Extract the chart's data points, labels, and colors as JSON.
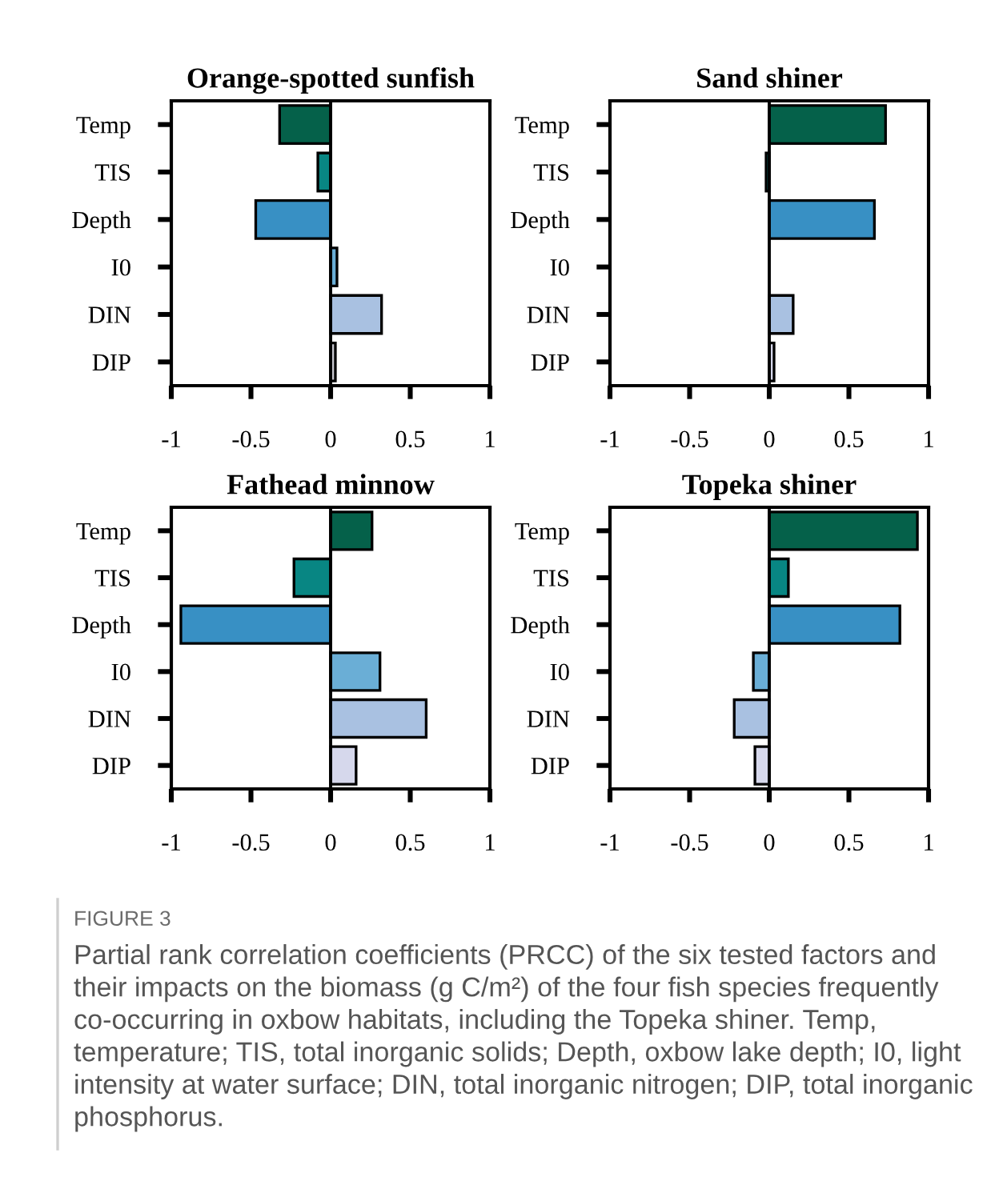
{
  "chart_data": [
    {
      "type": "bar",
      "orientation": "horizontal",
      "title": "Orange-spotted sunfish",
      "categories": [
        "Temp",
        "TIS",
        "Depth",
        "I0",
        "DIN",
        "DIP"
      ],
      "values": [
        -0.32,
        -0.08,
        -0.47,
        0.04,
        0.32,
        0.03
      ],
      "colors": [
        "#05614a",
        "#088683",
        "#3890c4",
        "#6aaed6",
        "#a9c1e1",
        "#c8c8d0"
      ],
      "xlim": [
        -1,
        1
      ],
      "xticks": [
        -1,
        -0.5,
        0,
        0.5,
        1
      ],
      "ref_lines": [
        {
          "axis": "x",
          "value": 0,
          "color": "#000000"
        }
      ],
      "grid": false,
      "annotations": [
        "FIGURE 3",
        "Partial rank correlation coefficients (PRCC) of the six tested factors and their impacts on the biomass (g C/m²) of the four fish species frequently co-occurring in oxbow habitats, including the Topeka shiner. Temp, temperature; TIS, total inorganic solids; Depth, oxbow lake depth; I0, light intensity at water surface; DIN, total inorganic nitrogen; DIP, total inorganic phosphorus."
      ]
    },
    {
      "type": "bar",
      "orientation": "horizontal",
      "title": "Sand shiner",
      "categories": [
        "Temp",
        "TIS",
        "Depth",
        "I0",
        "DIN",
        "DIP"
      ],
      "values": [
        0.73,
        -0.02,
        0.66,
        0,
        0.15,
        0.03
      ],
      "colors": [
        "#05614a",
        "#088683",
        "#3890c4",
        "#6aaed6",
        "#a9c1e1",
        "#d6d8ec"
      ],
      "xlim": [
        -1,
        1
      ],
      "xticks": [
        -1,
        -0.5,
        0,
        0.5,
        1
      ],
      "ref_lines": [
        {
          "axis": "x",
          "value": 0,
          "color": "#000000"
        }
      ],
      "grid": false
    },
    {
      "type": "bar",
      "orientation": "horizontal",
      "title": "Fathead minnow",
      "categories": [
        "Temp",
        "TIS",
        "Depth",
        "I0",
        "DIN",
        "DIP"
      ],
      "values": [
        0.26,
        -0.23,
        -0.94,
        0.31,
        0.6,
        0.16
      ],
      "colors": [
        "#05614a",
        "#088683",
        "#3890c4",
        "#6aaed6",
        "#a9c1e1",
        "#d6d8ec"
      ],
      "xlim": [
        -1,
        1
      ],
      "xticks": [
        -1,
        -0.5,
        0,
        0.5,
        1
      ],
      "ref_lines": [
        {
          "axis": "x",
          "value": 0,
          "color": "#000000"
        }
      ],
      "grid": false
    },
    {
      "type": "bar",
      "orientation": "horizontal",
      "title": "Topeka shiner",
      "categories": [
        "Temp",
        "TIS",
        "Depth",
        "I0",
        "DIN",
        "DIP"
      ],
      "values": [
        0.93,
        0.12,
        0.82,
        -0.1,
        -0.22,
        -0.09
      ],
      "colors": [
        "#05614a",
        "#088683",
        "#3890c4",
        "#6aaed6",
        "#a9c1e1",
        "#d6d8ec"
      ],
      "xlim": [
        -1,
        1
      ],
      "xticks": [
        -1,
        -0.5,
        0,
        0.5,
        1
      ],
      "ref_lines": [
        {
          "axis": "x",
          "value": 0,
          "color": "#000000"
        }
      ],
      "grid": false
    }
  ]
}
